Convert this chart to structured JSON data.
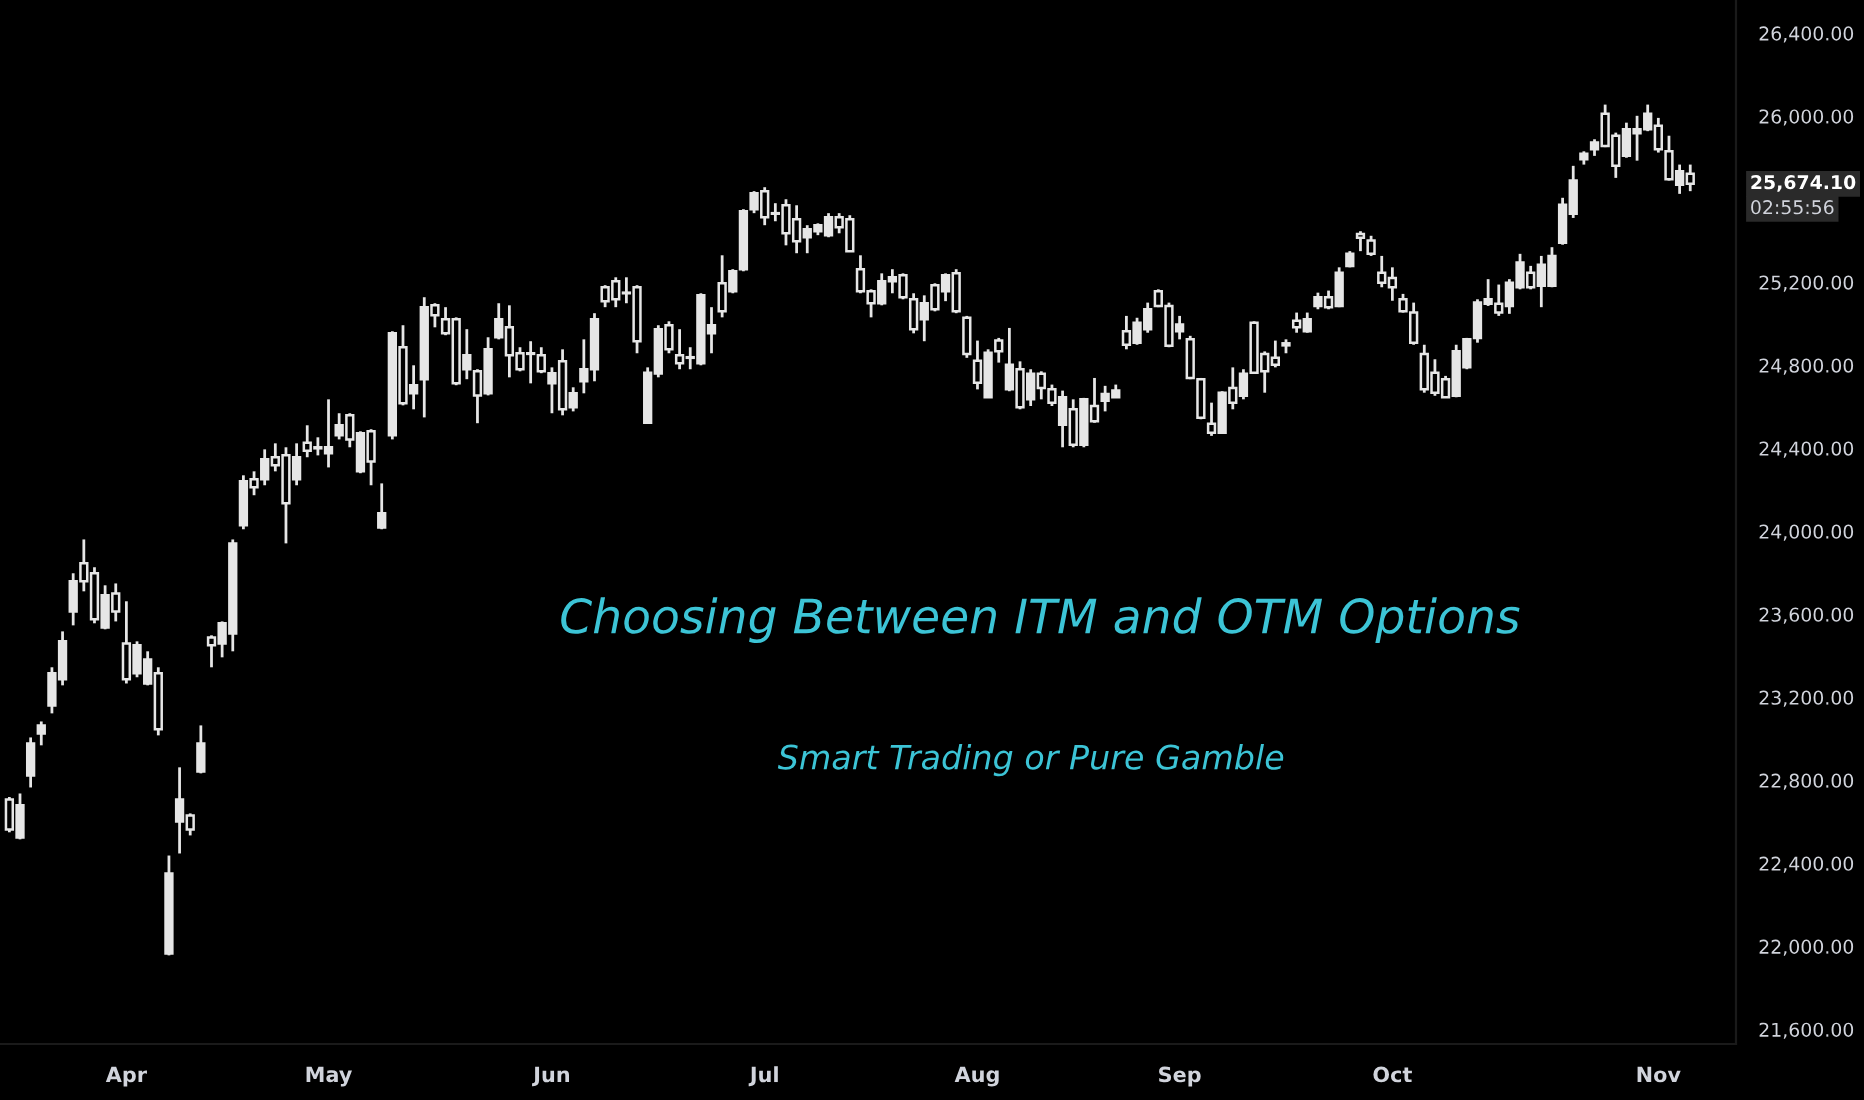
{
  "chart_data": {
    "type": "candlestick",
    "title": "Choosing Between ITM and OTM Options",
    "subtitle": "Smart Trading or Pure Gamble",
    "categories": [
      null,
      null,
      null,
      null,
      null,
      null,
      null,
      null,
      null,
      null,
      null,
      "Apr",
      null,
      null,
      null,
      null,
      null,
      null,
      null,
      null,
      null,
      null,
      null,
      null,
      null,
      null,
      null,
      null,
      null,
      null,
      "May",
      null,
      null,
      null,
      null,
      null,
      null,
      null,
      null,
      null,
      null,
      null,
      null,
      null,
      null,
      null,
      null,
      null,
      null,
      null,
      null,
      "Jun",
      null,
      null,
      null,
      null,
      null,
      null,
      null,
      null,
      null,
      null,
      null,
      null,
      null,
      null,
      null,
      null,
      null,
      null,
      null,
      "Jul",
      null,
      null,
      null,
      null,
      null,
      null,
      null,
      null,
      null,
      null,
      null,
      null,
      null,
      null,
      null,
      null,
      null,
      null,
      null,
      "Aug",
      null,
      null,
      null,
      null,
      null,
      null,
      null,
      null,
      null,
      null,
      null,
      null,
      null,
      null,
      null,
      null,
      null,
      null,
      "Sep",
      null,
      null,
      null,
      null,
      null,
      null,
      null,
      null,
      null,
      null,
      null,
      null,
      null,
      null,
      null,
      null,
      null,
      null,
      null,
      "Oct",
      null,
      null,
      null,
      null,
      null,
      null,
      null,
      null,
      null,
      null,
      null,
      null,
      null,
      null,
      null,
      null,
      null,
      null,
      null,
      null,
      null,
      null,
      null,
      null,
      "Nov",
      null,
      null,
      null
    ],
    "ohlc": [
      [
        22708,
        22720,
        22550,
        22564
      ],
      [
        22525,
        22737,
        22516,
        22680
      ],
      [
        22824,
        23007,
        22766,
        22978
      ],
      [
        23026,
        23084,
        22969,
        23065
      ],
      [
        23161,
        23345,
        23123,
        23316
      ],
      [
        23287,
        23518,
        23258,
        23470
      ],
      [
        23614,
        23798,
        23547,
        23759
      ],
      [
        23846,
        23961,
        23711,
        23759
      ],
      [
        23798,
        23827,
        23557,
        23576
      ],
      [
        23537,
        23740,
        23528,
        23692
      ],
      [
        23701,
        23749,
        23566,
        23614
      ],
      [
        23460,
        23663,
        23267,
        23287
      ],
      [
        23316,
        23470,
        23297,
        23451
      ],
      [
        23267,
        23422,
        23258,
        23383
      ],
      [
        23316,
        23345,
        23017,
        23046
      ],
      [
        21966,
        22438,
        21957,
        22352
      ],
      [
        22602,
        22863,
        22448,
        22708
      ],
      [
        22631,
        22641,
        22535,
        22564
      ],
      [
        22843,
        23065,
        22834,
        22978
      ],
      [
        23489,
        23499,
        23345,
        23451
      ],
      [
        23460,
        23566,
        23393,
        23557
      ],
      [
        23508,
        23961,
        23422,
        23942
      ],
      [
        24029,
        24270,
        24010,
        24241
      ],
      [
        24251,
        24289,
        24174,
        24212
      ],
      [
        24251,
        24395,
        24222,
        24347
      ],
      [
        24357,
        24424,
        24289,
        24318
      ],
      [
        24366,
        24405,
        23942,
        24135
      ],
      [
        24251,
        24424,
        24222,
        24357
      ],
      [
        24427,
        24511,
        24357,
        24388
      ],
      [
        24405,
        24453,
        24366,
        24400
      ],
      [
        24376,
        24636,
        24308,
        24405
      ],
      [
        24463,
        24569,
        24443,
        24511
      ],
      [
        24559,
        24569,
        24405,
        24443
      ],
      [
        24289,
        24482,
        24280,
        24472
      ],
      [
        24482,
        24492,
        24222,
        24337
      ],
      [
        24019,
        24231,
        24010,
        24087
      ],
      [
        24463,
        24964,
        24443,
        24954
      ],
      [
        24887,
        24993,
        24607,
        24617
      ],
      [
        24665,
        24800,
        24588,
        24704
      ],
      [
        24733,
        25128,
        24549,
        25080
      ],
      [
        25089,
        25099,
        24983,
        25041
      ],
      [
        25022,
        25080,
        24945,
        24954
      ],
      [
        25022,
        25031,
        24704,
        24713
      ],
      [
        24781,
        24974,
        24733,
        24848
      ],
      [
        24771,
        24781,
        24521,
        24655
      ],
      [
        24665,
        24935,
        24655,
        24877
      ],
      [
        24935,
        25099,
        24925,
        25022
      ],
      [
        24983,
        25089,
        24742,
        24848
      ],
      [
        24858,
        24887,
        24771,
        24781
      ],
      [
        24858,
        24916,
        24713,
        24855
      ],
      [
        24848,
        24887,
        24762,
        24771
      ],
      [
        24713,
        24790,
        24569,
        24762
      ],
      [
        24819,
        24877,
        24559,
        24588
      ],
      [
        24598,
        24694,
        24578,
        24665
      ],
      [
        24723,
        24925,
        24665,
        24781
      ],
      [
        24781,
        25051,
        24723,
        25022
      ],
      [
        25176,
        25186,
        25080,
        25109
      ],
      [
        25205,
        25224,
        25080,
        25118
      ],
      [
        25147,
        25224,
        25099,
        25150
      ],
      [
        25176,
        25186,
        24858,
        24916
      ],
      [
        24523,
        24790,
        24521,
        24764
      ],
      [
        24761,
        24993,
        24742,
        24974
      ],
      [
        24993,
        25012,
        24858,
        24877
      ],
      [
        24848,
        24974,
        24781,
        24810
      ],
      [
        24839,
        24887,
        24781,
        24836
      ],
      [
        24810,
        25147,
        24800,
        25137
      ],
      [
        24954,
        25080,
        24858,
        24993
      ],
      [
        25195,
        25330,
        25031,
        25060
      ],
      [
        25157,
        25263,
        25147,
        25253
      ],
      [
        25263,
        25552,
        25253,
        25542
      ],
      [
        25552,
        25639,
        25533,
        25629
      ],
      [
        25639,
        25658,
        25475,
        25513
      ],
      [
        25533,
        25581,
        25494,
        25530
      ],
      [
        25571,
        25600,
        25378,
        25436
      ],
      [
        25504,
        25571,
        25340,
        25398
      ],
      [
        25417,
        25475,
        25340,
        25456
      ],
      [
        25446,
        25484,
        25427,
        25475
      ],
      [
        25427,
        25533,
        25417,
        25513
      ],
      [
        25513,
        25533,
        25436,
        25465
      ],
      [
        25504,
        25523,
        25349,
        25349
      ],
      [
        25263,
        25330,
        25147,
        25157
      ],
      [
        25157,
        25166,
        25031,
        25099
      ],
      [
        25099,
        25243,
        25089,
        25205
      ],
      [
        25205,
        25263,
        25147,
        25224
      ],
      [
        25234,
        25243,
        25118,
        25128
      ],
      [
        25118,
        25147,
        24954,
        24974
      ],
      [
        25022,
        25137,
        24916,
        25099
      ],
      [
        25186,
        25195,
        25060,
        25070
      ],
      [
        25157,
        25243,
        25109,
        25234
      ],
      [
        25243,
        25263,
        25051,
        25060
      ],
      [
        25029,
        25038,
        24836,
        24855
      ],
      [
        24822,
        24919,
        24684,
        24716
      ],
      [
        24646,
        24877,
        24643,
        24861
      ],
      [
        24919,
        24932,
        24813,
        24868
      ],
      [
        24684,
        24980,
        24675,
        24803
      ],
      [
        24781,
        24819,
        24588,
        24598
      ],
      [
        24636,
        24781,
        24604,
        24759
      ],
      [
        24759,
        24771,
        24636,
        24691
      ],
      [
        24684,
        24707,
        24604,
        24620
      ],
      [
        24514,
        24678,
        24405,
        24646
      ],
      [
        24588,
        24636,
        24405,
        24417
      ],
      [
        24417,
        24643,
        24405,
        24636
      ],
      [
        24604,
        24739,
        24523,
        24530
      ],
      [
        24629,
        24701,
        24578,
        24662
      ],
      [
        24646,
        24707,
        24643,
        24678
      ],
      [
        24964,
        25038,
        24877,
        24899
      ],
      [
        24909,
        25029,
        24899,
        25005
      ],
      [
        24974,
        25102,
        24957,
        25070
      ],
      [
        25157,
        25166,
        25080,
        25086
      ],
      [
        25086,
        25102,
        24887,
        24894
      ],
      [
        24964,
        25038,
        24925,
        24996
      ],
      [
        24925,
        24942,
        24733,
        24739
      ],
      [
        24733,
        24739,
        24540,
        24547
      ],
      [
        24518,
        24620,
        24460,
        24475
      ],
      [
        24475,
        24675,
        24469,
        24668
      ],
      [
        24691,
        24790,
        24588,
        24620
      ],
      [
        24653,
        24781,
        24636,
        24759
      ],
      [
        25005,
        25012,
        24759,
        24764
      ],
      [
        24855,
        24867,
        24668,
        24771
      ],
      [
        24836,
        24919,
        24790,
        24803
      ],
      [
        24896,
        24925,
        24858,
        24906
      ],
      [
        25015,
        25054,
        24957,
        24983
      ],
      [
        24964,
        25054,
        24957,
        25022
      ],
      [
        25086,
        25150,
        25070,
        25128
      ],
      [
        25128,
        25160,
        25070,
        25080
      ],
      [
        25086,
        25272,
        25080,
        25246
      ],
      [
        25279,
        25350,
        25272,
        25337
      ],
      [
        25433,
        25446,
        25350,
        25414
      ],
      [
        25401,
        25424,
        25327,
        25337
      ],
      [
        25246,
        25327,
        25176,
        25198
      ],
      [
        25221,
        25272,
        25111,
        25176
      ],
      [
        25118,
        25144,
        25054,
        25060
      ],
      [
        25054,
        25102,
        24899,
        24909
      ],
      [
        24855,
        24899,
        24668,
        24684
      ],
      [
        24764,
        24829,
        24653,
        24668
      ],
      [
        24733,
        24749,
        24643,
        24646
      ],
      [
        24653,
        24899,
        24646,
        24868
      ],
      [
        24790,
        24932,
        24781,
        24925
      ],
      [
        24932,
        25118,
        24909,
        25102
      ],
      [
        25096,
        25215,
        25086,
        25118
      ],
      [
        25096,
        25189,
        25038,
        25054
      ],
      [
        25086,
        25215,
        25048,
        25198
      ],
      [
        25176,
        25337,
        25166,
        25295
      ],
      [
        25246,
        25279,
        25166,
        25176
      ],
      [
        25183,
        25327,
        25080,
        25285
      ],
      [
        25183,
        25369,
        25176,
        25327
      ],
      [
        25391,
        25607,
        25381,
        25574
      ],
      [
        25530,
        25761,
        25510,
        25690
      ],
      [
        25793,
        25831,
        25767,
        25819
      ],
      [
        25841,
        25889,
        25809,
        25873
      ],
      [
        26012,
        26056,
        25851,
        25857
      ],
      [
        25906,
        25921,
        25703,
        25761
      ],
      [
        25809,
        25969,
        25800,
        25937
      ],
      [
        25918,
        26002,
        25786,
        25937
      ],
      [
        25937,
        26056,
        25928,
        26012
      ],
      [
        25954,
        25992,
        25825,
        25841
      ],
      [
        25831,
        25906,
        25690,
        25696
      ],
      [
        25670,
        25767,
        25626,
        25735
      ],
      [
        25723,
        25767,
        25639,
        25674.1
      ]
    ],
    "color": "#e6e6e6",
    "ylim": [
      21530,
      26560
    ],
    "yticks": [
      {
        "value": 21600,
        "label": "21,600.00"
      },
      {
        "value": 22000,
        "label": "22,000.00"
      },
      {
        "value": 22400,
        "label": "22,400.00"
      },
      {
        "value": 22800,
        "label": "22,800.00"
      },
      {
        "value": 23200,
        "label": "23,200.00"
      },
      {
        "value": 23600,
        "label": "23,600.00"
      },
      {
        "value": 24000,
        "label": "24,000.00"
      },
      {
        "value": 24400,
        "label": "24,400.00"
      },
      {
        "value": 24800,
        "label": "24,800.00"
      },
      {
        "value": 25200,
        "label": "25,200.00"
      },
      {
        "value": 26000,
        "label": "26,000.00"
      },
      {
        "value": 26400,
        "label": "26,400.00"
      }
    ],
    "annotations": [
      "25,674.10",
      "02:55:56"
    ],
    "grid": false,
    "legend": false
  }
}
